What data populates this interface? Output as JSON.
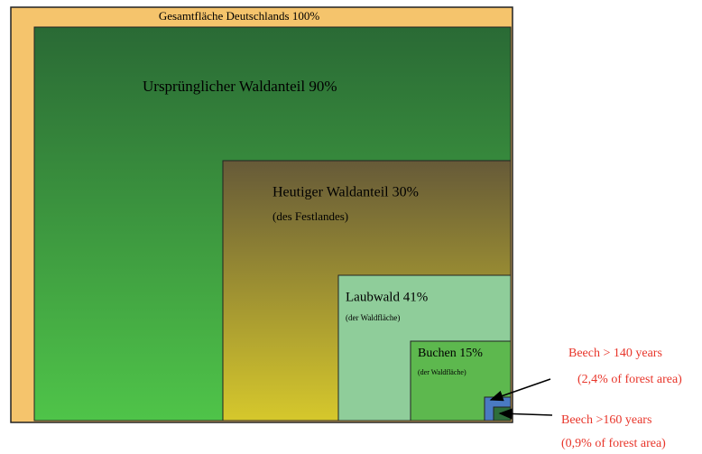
{
  "labels": {
    "total": "Gesamtfläche Deutschlands 100%",
    "original_forest": "Ursprünglicher Waldanteil 90%",
    "current_forest": "Heutiger Waldanteil 30%",
    "current_forest_note": "(des Festlandes)",
    "deciduous": "Laubwald 41%",
    "deciduous_note": "(der Waldfläche)",
    "beech": "Buchen 15%",
    "beech_note": "(der Waldfläche)",
    "beech_140": "Beech  > 140 years",
    "beech_140_note": "(2,4%  of forest area)",
    "beech_160": "Beech >160 years",
    "beech_160_note": "(0,9% of forest area)"
  }
}
